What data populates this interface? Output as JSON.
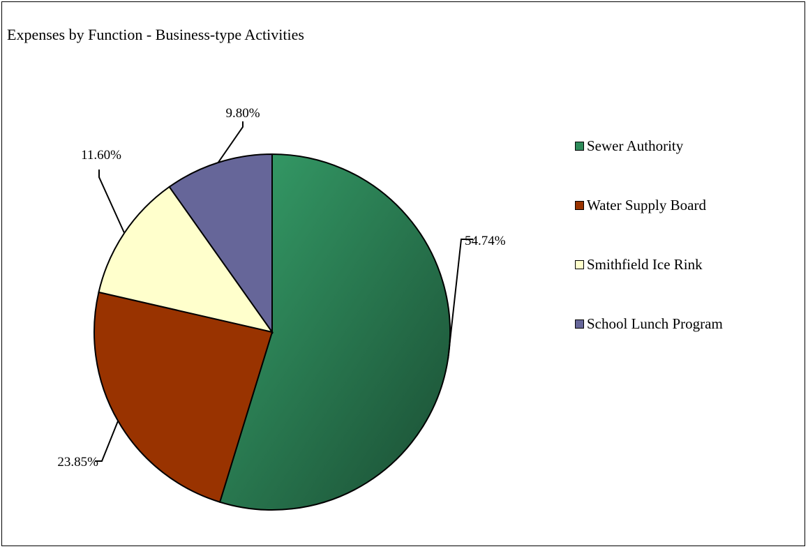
{
  "chart_data": {
    "type": "pie",
    "title": "Expenses by Function - Business-type Activities",
    "legend_position": "right",
    "categories": [
      "Sewer Authority",
      "Water Supply Board",
      "Smithfield Ice Rink",
      "School Lunch Program"
    ],
    "values": [
      54.74,
      23.85,
      11.6,
      9.8
    ],
    "data_labels": [
      "54.74%",
      "23.85%",
      "11.60%",
      "9.80%"
    ],
    "colors": [
      "#2e8b5a",
      "#993300",
      "#ffffcc",
      "#666699"
    ]
  }
}
